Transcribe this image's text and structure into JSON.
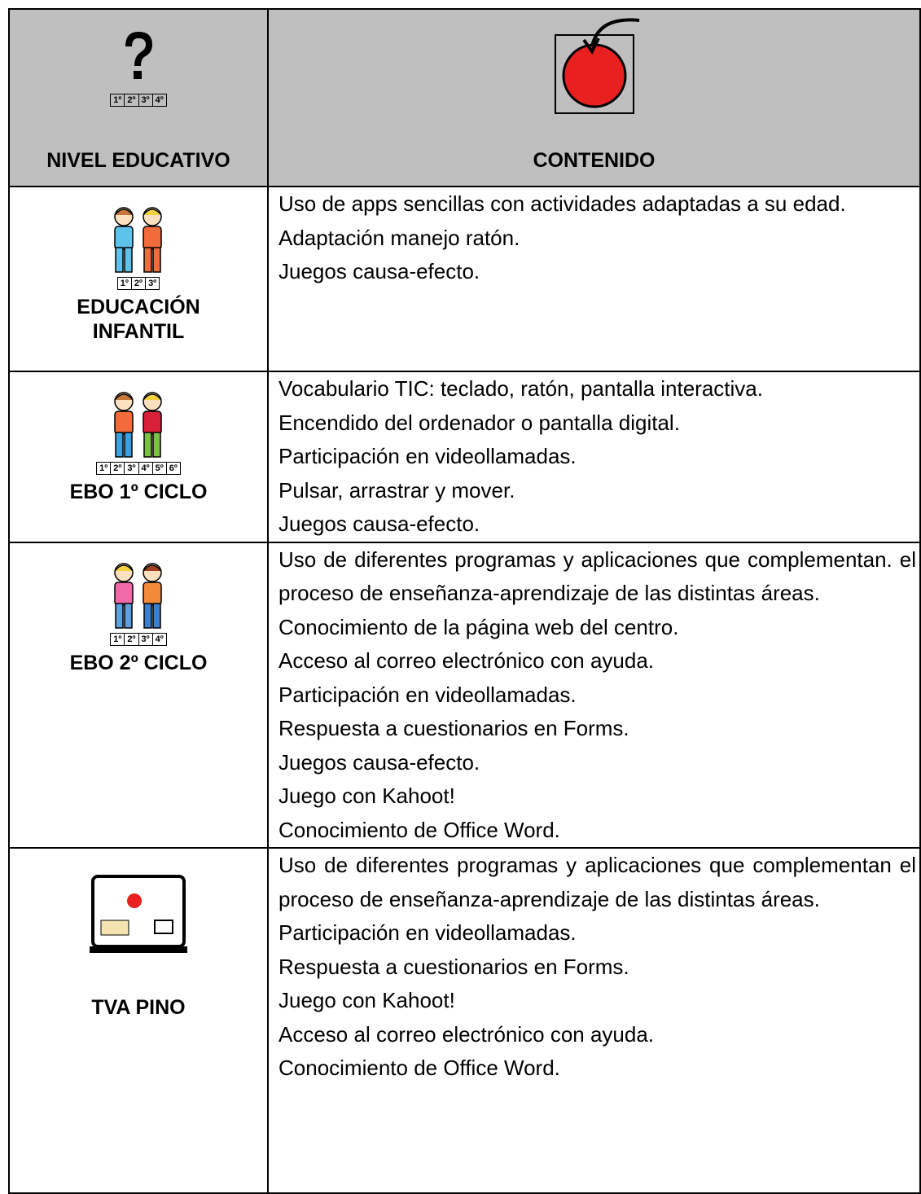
{
  "header": {
    "col1": {
      "label": "NIVEL EDUCATIVO",
      "grades": [
        "1º",
        "2º",
        "3º",
        "4º"
      ]
    },
    "col2": {
      "label": "CONTENIDO"
    }
  },
  "rows": [
    {
      "level": "EDUCACIÓN INFANTIL",
      "grades": [
        "1º",
        "2º",
        "3º"
      ],
      "content": [
        "Uso de apps sencillas con actividades adaptadas a su edad.",
        "Adaptación manejo ratón.",
        "Juegos causa-efecto."
      ]
    },
    {
      "level": "EBO 1º CICLO",
      "grades": [
        "1º",
        "2º",
        "3º",
        "4º",
        "5º",
        "6º"
      ],
      "content": [
        "Vocabulario TIC: teclado, ratón, pantalla interactiva.",
        "Encendido del ordenador o pantalla digital.",
        "Participación en videollamadas.",
        "Pulsar, arrastrar y mover.",
        "Juegos causa-efecto."
      ]
    },
    {
      "level": "EBO 2º CICLO",
      "grades": [
        "1º",
        "2º",
        "3º",
        "4º"
      ],
      "content": [
        "Uso de diferentes programas y aplicaciones que complementan. el proceso de enseñanza-aprendizaje de las distintas áreas.",
        "Conocimiento de la página web del centro.",
        "Acceso al correo electrónico con ayuda.",
        "Participación en videollamadas.",
        "Respuesta a cuestionarios en Forms.",
        "Juegos causa-efecto.",
        "Juego con Kahoot!",
        "Conocimiento de Office Word."
      ]
    },
    {
      "level": "TVA PINO",
      "content": [
        "Uso de diferentes programas y aplicaciones que complementan el proceso de enseñanza-aprendizaje de las distintas áreas.",
        "Participación en videollamadas.",
        "Respuesta a cuestionarios en Forms.",
        "Juego con Kahoot!",
        "Acceso al correo electrónico con ayuda.",
        "Conocimiento de Office Word."
      ]
    }
  ]
}
